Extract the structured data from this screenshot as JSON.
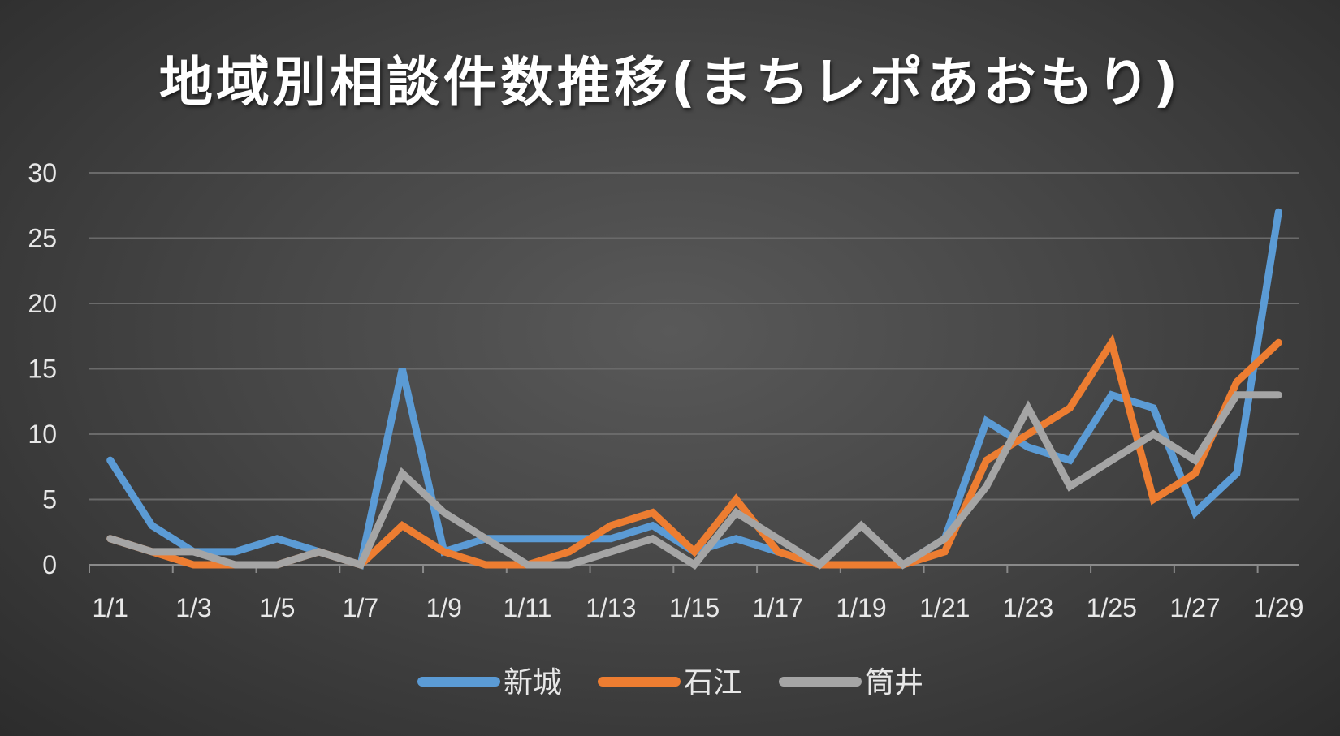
{
  "chart_data": {
    "type": "line",
    "title": "地域別相談件数推移(まちレポあおもり)",
    "xlabel": "",
    "ylabel": "",
    "x": [
      "1/1",
      "1/2",
      "1/3",
      "1/4",
      "1/5",
      "1/6",
      "1/7",
      "1/8",
      "1/9",
      "1/10",
      "1/11",
      "1/12",
      "1/13",
      "1/14",
      "1/15",
      "1/16",
      "1/17",
      "1/18",
      "1/19",
      "1/20",
      "1/21",
      "1/22",
      "1/23",
      "1/24",
      "1/25",
      "1/26",
      "1/27",
      "1/28",
      "1/29"
    ],
    "x_tick_labels": [
      "1/1",
      "1/3",
      "1/5",
      "1/7",
      "1/9",
      "1/11",
      "1/13",
      "1/15",
      "1/17",
      "1/19",
      "1/21",
      "1/23",
      "1/25",
      "1/27",
      "1/29"
    ],
    "y_ticks": [
      0,
      5,
      10,
      15,
      20,
      25,
      30
    ],
    "ylim": [
      0,
      30
    ],
    "grid": true,
    "legend_position": "bottom",
    "series": [
      {
        "name": "新城",
        "color": "#5b9bd5",
        "values": [
          8,
          3,
          1,
          1,
          2,
          1,
          0,
          15,
          1,
          2,
          2,
          2,
          2,
          3,
          1,
          2,
          1,
          0,
          0,
          0,
          2,
          11,
          9,
          8,
          13,
          12,
          4,
          7,
          27
        ]
      },
      {
        "name": "石江",
        "color": "#ed7d31",
        "values": [
          2,
          1,
          0,
          0,
          0,
          1,
          0,
          3,
          1,
          0,
          0,
          1,
          3,
          4,
          1,
          5,
          1,
          0,
          0,
          0,
          1,
          8,
          10,
          12,
          17,
          5,
          7,
          14,
          17
        ]
      },
      {
        "name": "筒井",
        "color": "#a5a5a5",
        "values": [
          2,
          1,
          1,
          0,
          0,
          1,
          0,
          7,
          4,
          2,
          0,
          0,
          1,
          2,
          0,
          4,
          2,
          0,
          3,
          0,
          2,
          6,
          12,
          6,
          8,
          10,
          8,
          13,
          13
        ]
      }
    ]
  }
}
